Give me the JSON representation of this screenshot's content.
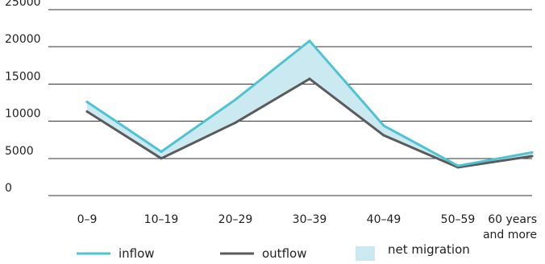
{
  "chart_data": {
    "type": "line",
    "categories": [
      "0–9",
      "10–19",
      "20–29",
      "30–39",
      "40–49",
      "50–59",
      "60 years and more"
    ],
    "category_label_lines": [
      [
        "0–9"
      ],
      [
        "10–19"
      ],
      [
        "20–29"
      ],
      [
        "30–39"
      ],
      [
        "40–49"
      ],
      [
        "50–59"
      ],
      [
        "60 years",
        "and more"
      ]
    ],
    "series": [
      {
        "name": "inflow",
        "values": [
          12600,
          5900,
          12900,
          20800,
          9400,
          4000,
          5800
        ]
      },
      {
        "name": "outflow",
        "values": [
          11300,
          5000,
          9800,
          15700,
          8100,
          3800,
          5300
        ]
      }
    ],
    "area": {
      "name": "net migration",
      "between": [
        "inflow",
        "outflow"
      ]
    },
    "ylim": [
      0,
      25000
    ],
    "yticks": [
      0,
      5000,
      10000,
      15000,
      20000,
      25000
    ],
    "grid": true,
    "legend_position": "bottom",
    "colors": {
      "inflow": "#4dc3d4",
      "outflow": "#5b5b5b",
      "net_migration": "#cbe9f1",
      "grid": "#333333"
    },
    "title": "",
    "xlabel": "",
    "ylabel": ""
  }
}
